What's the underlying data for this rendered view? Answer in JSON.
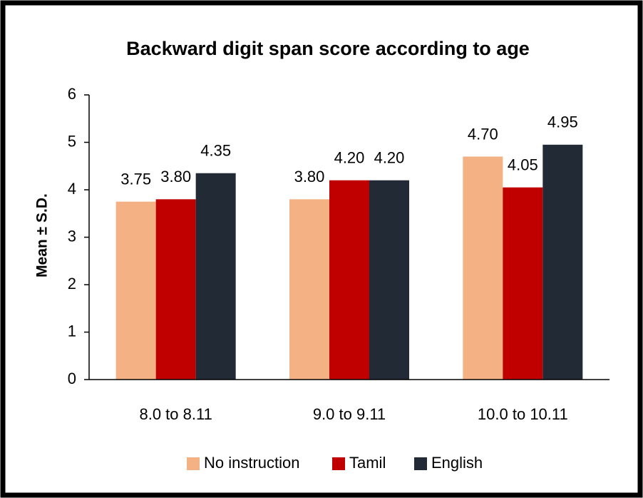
{
  "chart_data": {
    "type": "bar",
    "title": "Backward digit span score according to age",
    "y_label": "Mean ± S.D.",
    "categories": [
      "8.0 to 8.11",
      "9.0 to 9.11",
      "10.0 to 10.11"
    ],
    "series": [
      {
        "name": "No instruction",
        "color": "#f4b183",
        "values": [
          3.75,
          3.8,
          4.7
        ],
        "value_labels": [
          "3.75",
          "3.80",
          "4.70"
        ]
      },
      {
        "name": "Tamil",
        "color": "#c00000",
        "values": [
          3.8,
          4.2,
          4.05
        ],
        "value_labels": [
          "3.80",
          "4.20",
          "4.05"
        ]
      },
      {
        "name": "English",
        "color": "#222a35",
        "values": [
          4.35,
          4.2,
          4.95
        ],
        "value_labels": [
          "4.35",
          "4.20",
          "4.95"
        ]
      }
    ],
    "ylim": [
      0,
      6
    ],
    "yticks": [
      0,
      1,
      2,
      3,
      4,
      5,
      6
    ],
    "grid": false,
    "legend": "bottom"
  }
}
